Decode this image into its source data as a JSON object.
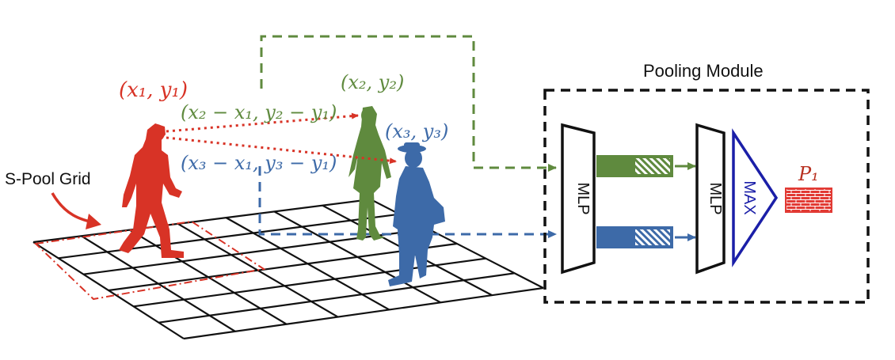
{
  "colors": {
    "red": "#d83326",
    "green": "#5f8a3e",
    "blue": "#3d6aa8",
    "navy": "#1b1fa8",
    "black": "#111111",
    "brick": "#e23a34"
  },
  "labels": {
    "pooling_module": "Pooling Module",
    "s_pool_grid": "S-Pool Grid",
    "coord_1": "(x₁, y₁)",
    "coord_2": "(x₂, y₂)",
    "coord_3": "(x₃, y₃)",
    "rel_2": "(x₂ − x₁, y₂ − y₁)",
    "rel_3": "(x₃ − x₁, y₃ − y₁)",
    "mlp_1": "MLP",
    "mlp_2": "MLP",
    "max": "MAX",
    "p1": "P₁"
  },
  "icons": {
    "person_red": "walking-person-icon",
    "person_green": "standing-woman-icon",
    "person_blue": "man-with-hat-icon",
    "pooled_vector": "brick-pattern-icon"
  }
}
